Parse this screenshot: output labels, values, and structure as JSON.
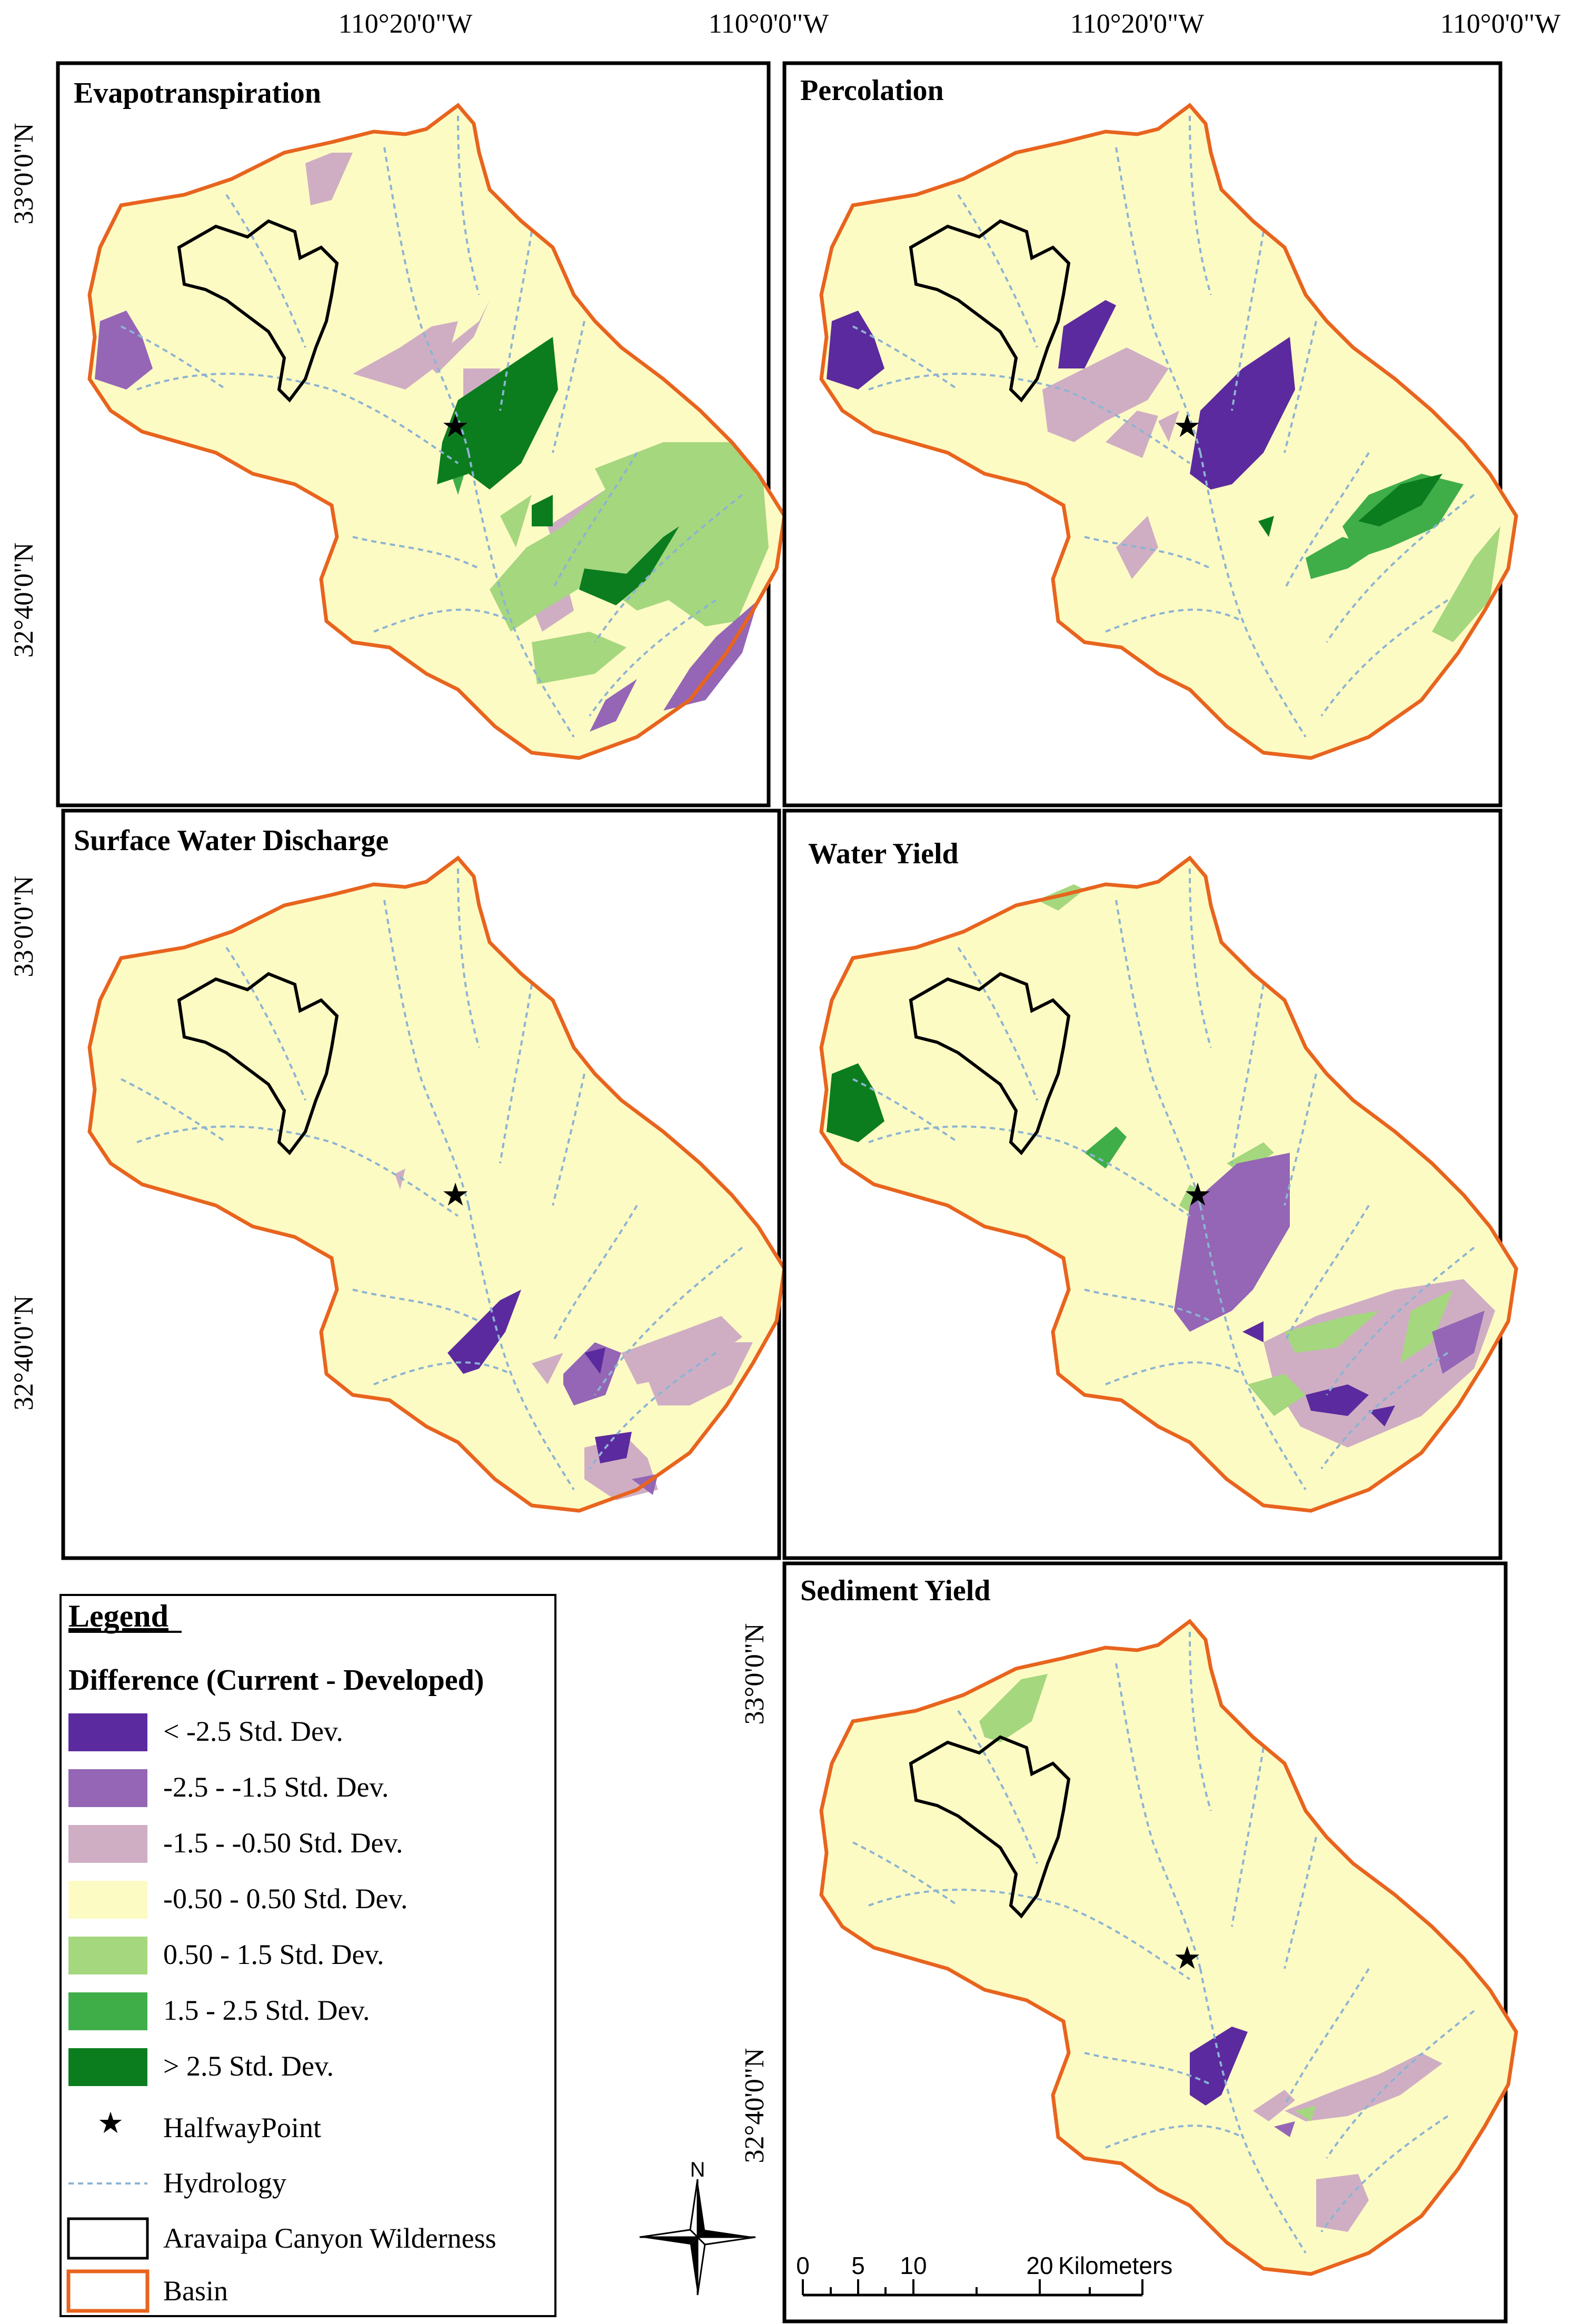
{
  "coords": {
    "lon_west": "110°20'0\"W",
    "lon_east": "110°0'0\"W",
    "lat_north": "33°0'0\"N",
    "lat_south": "32°40'0\"N"
  },
  "panels": [
    {
      "title": "Evapotranspiration"
    },
    {
      "title": "Percolation"
    },
    {
      "title": "Surface Water Discharge"
    },
    {
      "title": "Water Yield"
    },
    {
      "title": "Sediment Yield"
    }
  ],
  "legend": {
    "title": "Legend",
    "subtitle": "Difference (Current - Developed)",
    "classes": [
      {
        "label": "< -2.5 Std. Dev.",
        "color": "#5b2a9e"
      },
      {
        "label": "-2.5 - -1.5 Std. Dev.",
        "color": "#9466b5"
      },
      {
        "label": "-1.5 - -0.50 Std. Dev.",
        "color": "#cfaec4"
      },
      {
        "label": "-0.50 - 0.50 Std. Dev.",
        "color": "#fdfbc4"
      },
      {
        "label": "0.50 - 1.5 Std. Dev.",
        "color": "#a5d77e"
      },
      {
        "label": "1.5 - 2.5 Std. Dev.",
        "color": "#3fae49"
      },
      {
        "label": "> 2.5 Std. Dev.",
        "color": "#0b7d1e"
      }
    ],
    "halfway": "HalfwayPoint",
    "hydrology": "Hydrology",
    "wilderness": "Aravaipa Canyon Wilderness",
    "basin": "Basin"
  },
  "north_arrow": {
    "label": "N"
  },
  "scale": {
    "ticks": [
      "0",
      "5",
      "10",
      "20"
    ],
    "unit": "Kilometers"
  },
  "colors": {
    "basin_outline": "#e8641e",
    "hydrology": "#8cb4d2",
    "wilderness": "#000000"
  }
}
